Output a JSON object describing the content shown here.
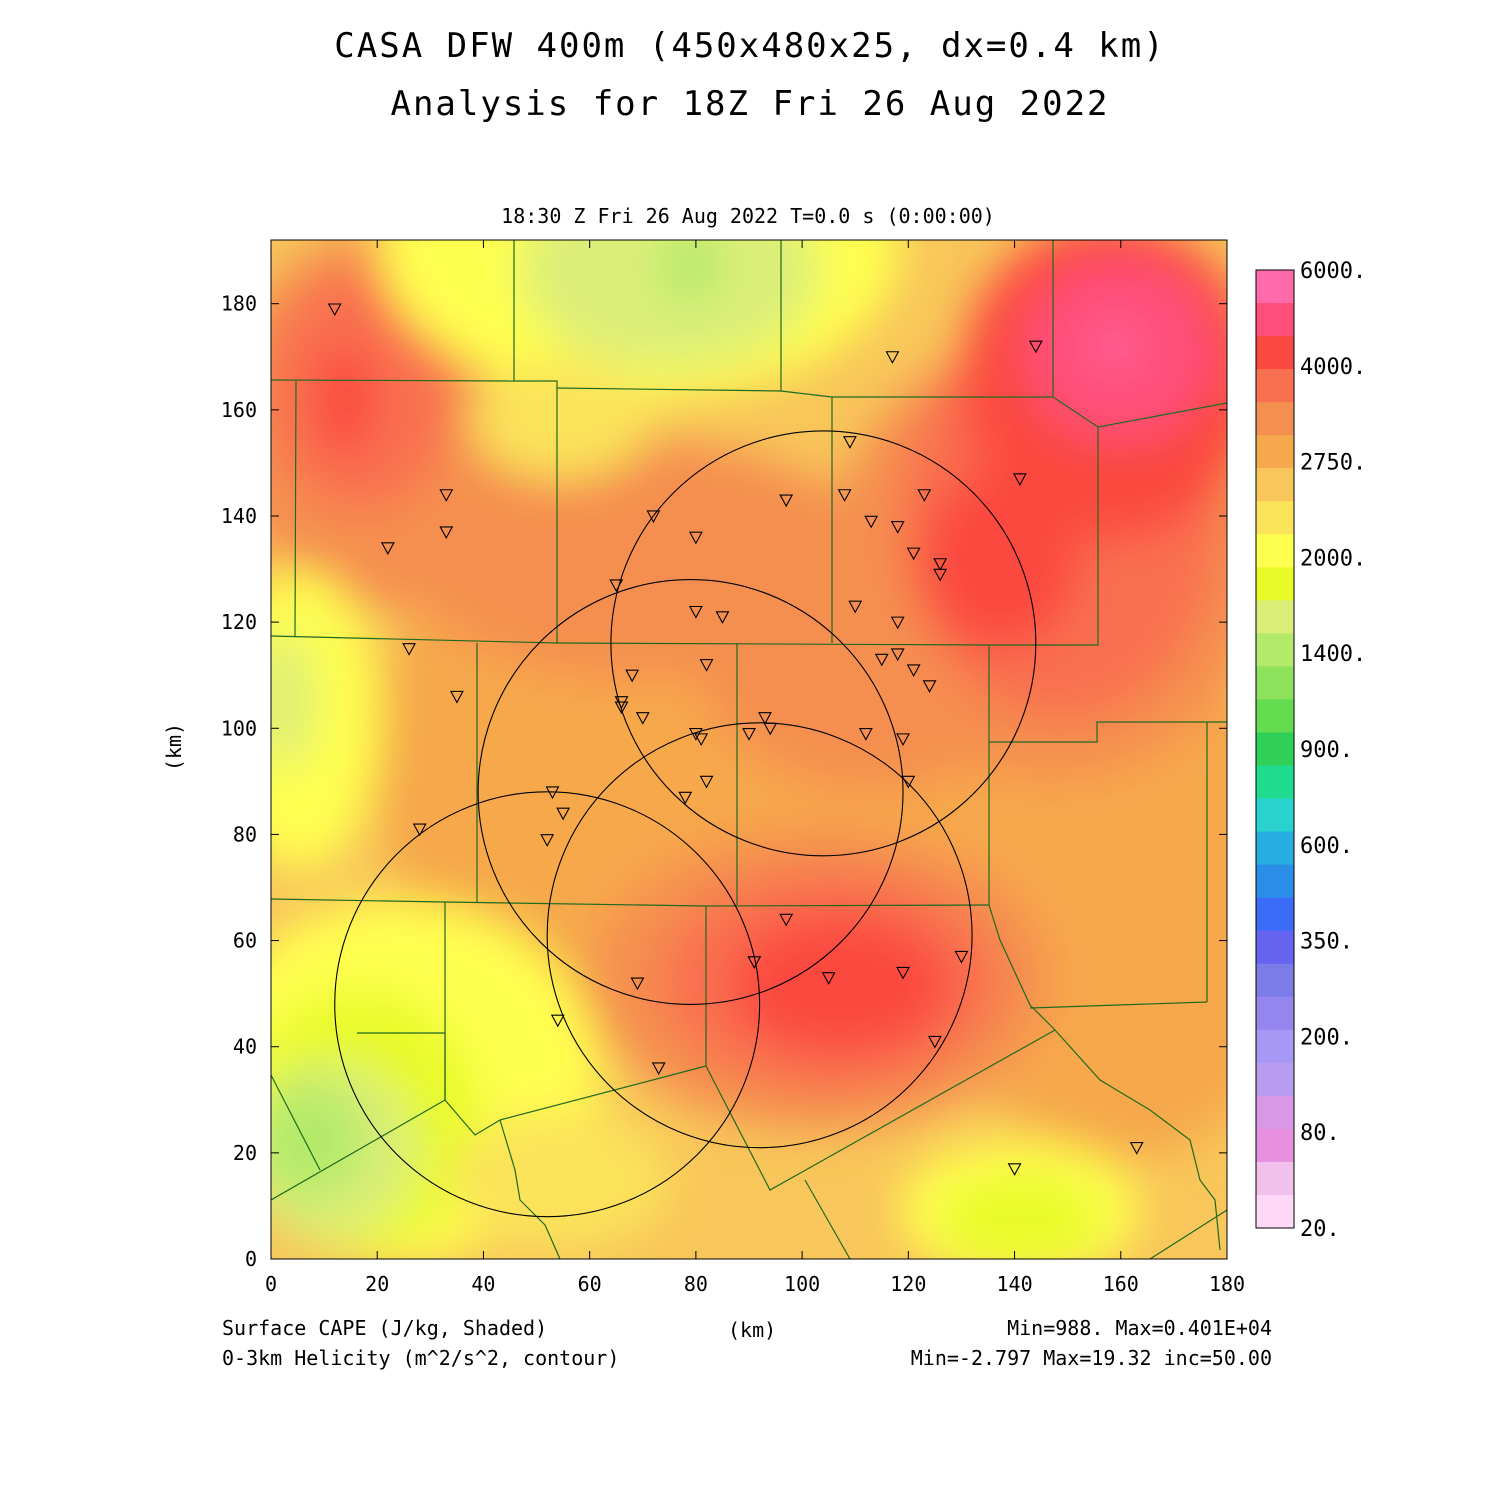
{
  "title": {
    "line1": "CASA DFW 400m (450x480x25, dx=0.4 km)",
    "line2": "Analysis for 18Z Fri 26 Aug 2022"
  },
  "subtitle": "18:30 Z Fri 26 Aug 2022   T=0.0 s (0:00:00)",
  "axes": {
    "x_ticks": [
      "0",
      "20",
      "40",
      "60",
      "80",
      "100",
      "120",
      "140",
      "160",
      "180"
    ],
    "y_ticks": [
      "0",
      "20",
      "40",
      "60",
      "80",
      "100",
      "120",
      "140",
      "160",
      "180"
    ],
    "x_unit": "(km)",
    "y_unit": "(km)",
    "xlim": [
      0,
      180
    ],
    "ylim": [
      0,
      192
    ]
  },
  "colorbar": {
    "labels": [
      "6000.",
      "4000.",
      "2750.",
      "2000.",
      "1400.",
      "900.",
      "600.",
      "350.",
      "200.",
      "80.",
      "20."
    ],
    "colors": [
      "#ff6aaa",
      "#ff4f7a",
      "#fb4840",
      "#f97050",
      "#f58f50",
      "#f6a84c",
      "#f8c65a",
      "#fbe35a",
      "#ffff50",
      "#e8fa28",
      "#dbee78",
      "#b4ea6a",
      "#8ee15a",
      "#64dc50",
      "#30cf58",
      "#20dc8e",
      "#2ad2cf",
      "#27aee0",
      "#2a8ee8",
      "#3a6cf8",
      "#6464f0",
      "#7c7ce8",
      "#9486ee",
      "#a698f4",
      "#b89cf2",
      "#d898e6",
      "#e890e0",
      "#f2c0ec",
      "#ffd8f8"
    ]
  },
  "footer": {
    "legend_line1": "Surface CAPE (J/kg, Shaded)",
    "legend_line2": "0-3km Helicity (m^2/s^2, contour)",
    "stats_line1": "Min=988. Max=0.401E+04",
    "stats_line2": "Min=-2.797 Max=19.32 inc=50.00"
  },
  "map_data": {
    "field": "Surface CAPE",
    "cape_range": [
      988,
      4010
    ],
    "radar_circles_center_km": [
      [
        52,
        48
      ],
      [
        79,
        88
      ],
      [
        92,
        61
      ],
      [
        104,
        116
      ]
    ],
    "radar_circle_radius_km": 40,
    "stations_km": [
      [
        12,
        179
      ],
      [
        33,
        144
      ],
      [
        33,
        137
      ],
      [
        22,
        134
      ],
      [
        26,
        115
      ],
      [
        35,
        106
      ],
      [
        28,
        81
      ],
      [
        53,
        88
      ],
      [
        55,
        84
      ],
      [
        52,
        79
      ],
      [
        54,
        45
      ],
      [
        65,
        127
      ],
      [
        72,
        140
      ],
      [
        80,
        136
      ],
      [
        80,
        122
      ],
      [
        85,
        121
      ],
      [
        82,
        112
      ],
      [
        68,
        110
      ],
      [
        66,
        105
      ],
      [
        66,
        104
      ],
      [
        70,
        102
      ],
      [
        80,
        99
      ],
      [
        81,
        98
      ],
      [
        82,
        90
      ],
      [
        78,
        87
      ],
      [
        90,
        99
      ],
      [
        93,
        102
      ],
      [
        94,
        100
      ],
      [
        97,
        143
      ],
      [
        109,
        154
      ],
      [
        108,
        144
      ],
      [
        110,
        123
      ],
      [
        113,
        139
      ],
      [
        118,
        138
      ],
      [
        123,
        144
      ],
      [
        117,
        170
      ],
      [
        118,
        120
      ],
      [
        115,
        113
      ],
      [
        118,
        114
      ],
      [
        121,
        111
      ],
      [
        124,
        108
      ],
      [
        121,
        133
      ],
      [
        126,
        131
      ],
      [
        126,
        129
      ],
      [
        112,
        99
      ],
      [
        119,
        98
      ],
      [
        120,
        90
      ],
      [
        97,
        64
      ],
      [
        91,
        56
      ],
      [
        105,
        53
      ],
      [
        119,
        54
      ],
      [
        130,
        57
      ],
      [
        125,
        41
      ],
      [
        69,
        52
      ],
      [
        73,
        36
      ],
      [
        141,
        147
      ],
      [
        144,
        172
      ],
      [
        140,
        17
      ],
      [
        163,
        21
      ]
    ]
  }
}
